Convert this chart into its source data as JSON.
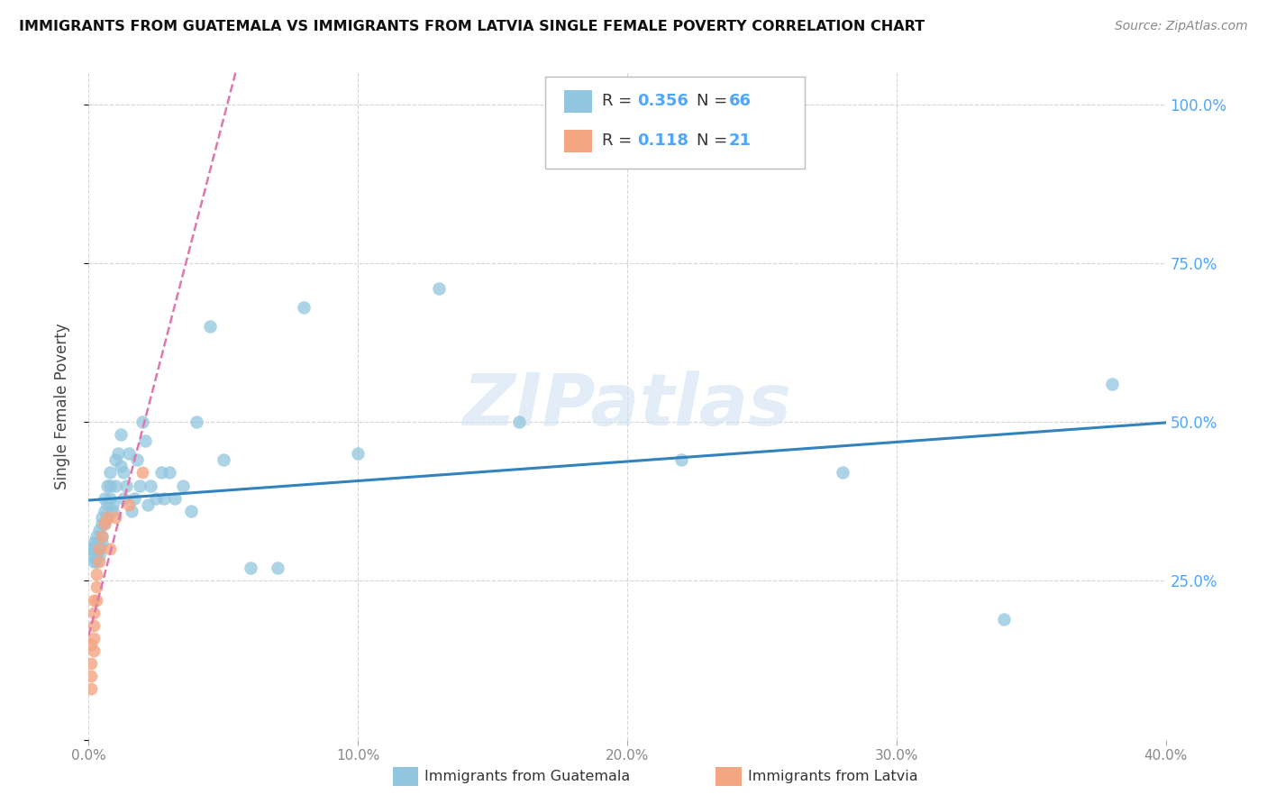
{
  "title": "IMMIGRANTS FROM GUATEMALA VS IMMIGRANTS FROM LATVIA SINGLE FEMALE POVERTY CORRELATION CHART",
  "source": "Source: ZipAtlas.com",
  "ylabel": "Single Female Poverty",
  "xlim": [
    0.0,
    0.4
  ],
  "ylim": [
    0.0,
    1.05
  ],
  "color_blue": "#92c5de",
  "color_pink": "#f4a582",
  "line_blue": "#3182bd",
  "line_pink": "#de77ae",
  "watermark": "ZIPatlas",
  "guatemala_x": [
    0.001,
    0.001,
    0.002,
    0.002,
    0.002,
    0.003,
    0.003,
    0.003,
    0.003,
    0.003,
    0.004,
    0.004,
    0.004,
    0.004,
    0.005,
    0.005,
    0.005,
    0.005,
    0.006,
    0.006,
    0.006,
    0.007,
    0.007,
    0.007,
    0.008,
    0.008,
    0.008,
    0.009,
    0.009,
    0.01,
    0.01,
    0.011,
    0.012,
    0.012,
    0.013,
    0.013,
    0.014,
    0.015,
    0.016,
    0.017,
    0.018,
    0.019,
    0.02,
    0.021,
    0.022,
    0.023,
    0.025,
    0.027,
    0.028,
    0.03,
    0.032,
    0.035,
    0.038,
    0.04,
    0.045,
    0.05,
    0.06,
    0.07,
    0.08,
    0.1,
    0.13,
    0.16,
    0.22,
    0.28,
    0.34,
    0.38
  ],
  "guatemala_y": [
    0.3,
    0.29,
    0.31,
    0.28,
    0.3,
    0.32,
    0.29,
    0.3,
    0.28,
    0.31,
    0.33,
    0.3,
    0.31,
    0.29,
    0.35,
    0.34,
    0.32,
    0.31,
    0.38,
    0.36,
    0.34,
    0.4,
    0.37,
    0.35,
    0.42,
    0.4,
    0.38,
    0.37,
    0.36,
    0.44,
    0.4,
    0.45,
    0.48,
    0.43,
    0.42,
    0.38,
    0.4,
    0.45,
    0.36,
    0.38,
    0.44,
    0.4,
    0.5,
    0.47,
    0.37,
    0.4,
    0.38,
    0.42,
    0.38,
    0.42,
    0.38,
    0.4,
    0.36,
    0.5,
    0.65,
    0.44,
    0.27,
    0.27,
    0.68,
    0.45,
    0.71,
    0.5,
    0.44,
    0.42,
    0.19,
    0.56
  ],
  "latvia_x": [
    0.001,
    0.001,
    0.001,
    0.001,
    0.002,
    0.002,
    0.002,
    0.002,
    0.002,
    0.003,
    0.003,
    0.003,
    0.004,
    0.004,
    0.005,
    0.006,
    0.007,
    0.008,
    0.01,
    0.015,
    0.02
  ],
  "latvia_y": [
    0.08,
    0.1,
    0.12,
    0.15,
    0.16,
    0.18,
    0.2,
    0.14,
    0.22,
    0.22,
    0.24,
    0.26,
    0.28,
    0.3,
    0.32,
    0.34,
    0.35,
    0.3,
    0.35,
    0.37,
    0.42
  ],
  "R_guatemala": 0.356,
  "N_guatemala": 66,
  "R_latvia": 0.118,
  "N_latvia": 21,
  "ytick_positions": [
    0.0,
    0.25,
    0.5,
    0.75,
    1.0
  ],
  "ytick_labels": [
    "",
    "25.0%",
    "50.0%",
    "75.0%",
    "100.0%"
  ],
  "xtick_positions": [
    0.0,
    0.1,
    0.2,
    0.3,
    0.4
  ],
  "xtick_labels": [
    "0.0%",
    "10.0%",
    "20.0%",
    "30.0%",
    "40.0%"
  ]
}
